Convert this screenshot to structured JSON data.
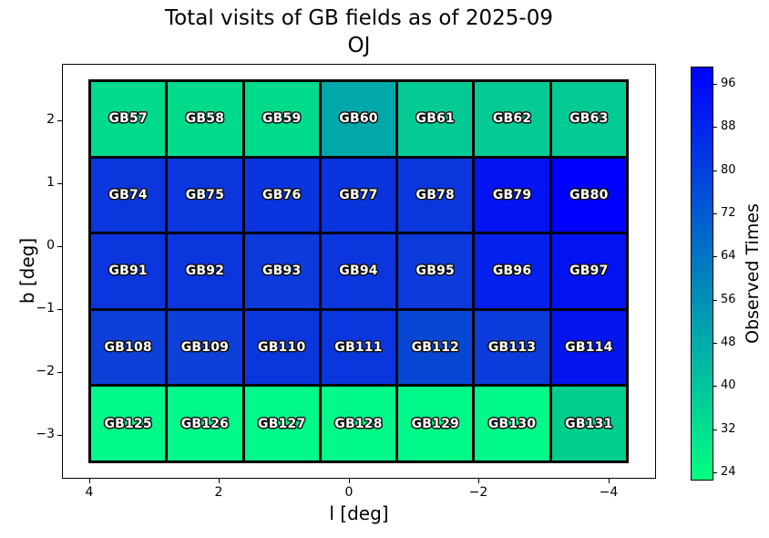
{
  "background": "#FFFFFF",
  "chart_data": {
    "type": "heatmap",
    "title": "Total visits of GB fields as of 2025-09",
    "subtitle": "OJ",
    "xlabel": "l [deg]",
    "ylabel": "b [deg]",
    "x_axis_inverted": true,
    "xlim_est": [
      4.5,
      -4.7
    ],
    "ylim_est": [
      -3.7,
      2.9
    ],
    "x_tick_labels": [
      "4",
      "2",
      "0",
      "−2",
      "−4"
    ],
    "y_tick_labels": [
      "2",
      "1",
      "0",
      "−1",
      "−2",
      "−3"
    ],
    "x_centers_est": [
      3.4,
      2.2,
      1.0,
      -0.2,
      -1.3,
      -2.5,
      -3.7
    ],
    "y_centers_est": [
      2.0,
      0.8,
      -0.4,
      -1.6,
      -2.8
    ],
    "grid_shape": {
      "cols": 7,
      "rows": 5
    },
    "rows": [
      {
        "fields": [
          {
            "label": "GB57",
            "color": "#00DA8C",
            "observed_times_est": 33
          },
          {
            "label": "GB58",
            "color": "#00DB8B",
            "observed_times_est": 33
          },
          {
            "label": "GB59",
            "color": "#00DB8B",
            "observed_times_est": 33
          },
          {
            "label": "GB60",
            "color": "#00A8AA",
            "observed_times_est": 49
          },
          {
            "label": "GB61",
            "color": "#04CB93",
            "observed_times_est": 38
          },
          {
            "label": "GB62",
            "color": "#04CB93",
            "observed_times_est": 38
          },
          {
            "label": "GB63",
            "color": "#04CB93",
            "observed_times_est": 38
          }
        ]
      },
      {
        "fields": [
          {
            "label": "GB74",
            "color": "#0B36DD",
            "observed_times_est": 82
          },
          {
            "label": "GB75",
            "color": "#0B36DD",
            "observed_times_est": 82
          },
          {
            "label": "GB76",
            "color": "#0A34DE",
            "observed_times_est": 83
          },
          {
            "label": "GB77",
            "color": "#0A34DE",
            "observed_times_est": 83
          },
          {
            "label": "GB78",
            "color": "#0B36DD",
            "observed_times_est": 82
          },
          {
            "label": "GB79",
            "color": "#0313F2",
            "observed_times_est": 93
          },
          {
            "label": "GB80",
            "color": "#0000FF",
            "observed_times_est": 99
          }
        ]
      },
      {
        "fields": [
          {
            "label": "GB91",
            "color": "#0B36DD",
            "observed_times_est": 82
          },
          {
            "label": "GB92",
            "color": "#0B36DD",
            "observed_times_est": 82
          },
          {
            "label": "GB93",
            "color": "#0D3ADB",
            "observed_times_est": 81
          },
          {
            "label": "GB94",
            "color": "#0B36DD",
            "observed_times_est": 82
          },
          {
            "label": "GB95",
            "color": "#0D3ADB",
            "observed_times_est": 81
          },
          {
            "label": "GB96",
            "color": "#0520EC",
            "observed_times_est": 90
          },
          {
            "label": "GB97",
            "color": "#0313F2",
            "observed_times_est": 93
          }
        ]
      },
      {
        "fields": [
          {
            "label": "GB108",
            "color": "#0C40D8",
            "observed_times_est": 80
          },
          {
            "label": "GB109",
            "color": "#0C40D8",
            "observed_times_est": 80
          },
          {
            "label": "GB110",
            "color": "#0A37DD",
            "observed_times_est": 82
          },
          {
            "label": "GB111",
            "color": "#0A37DD",
            "observed_times_est": 82
          },
          {
            "label": "GB112",
            "color": "#0847D4",
            "observed_times_est": 78
          },
          {
            "label": "GB113",
            "color": "#0B3BDA",
            "observed_times_est": 81
          },
          {
            "label": "GB114",
            "color": "#0415F0",
            "observed_times_est": 92
          }
        ]
      },
      {
        "fields": [
          {
            "label": "GB125",
            "color": "#00F988",
            "observed_times_est": 24
          },
          {
            "label": "GB126",
            "color": "#00F988",
            "observed_times_est": 24
          },
          {
            "label": "GB127",
            "color": "#00F988",
            "observed_times_est": 24
          },
          {
            "label": "GB128",
            "color": "#00F988",
            "observed_times_est": 24
          },
          {
            "label": "GB129",
            "color": "#00F889",
            "observed_times_est": 24
          },
          {
            "label": "GB130",
            "color": "#00F988",
            "observed_times_est": 24
          },
          {
            "label": "GB131",
            "color": "#00CE8E",
            "observed_times_est": 37
          }
        ]
      }
    ],
    "colorbar": {
      "label": "Observed Times",
      "ticks": [
        96,
        88,
        80,
        72,
        64,
        56,
        48,
        40,
        32,
        24
      ],
      "vmin_est": 22.5,
      "vmax_est": 99.2,
      "colormap": "winter_r (green to blue)",
      "gradient_stops": [
        "#00FF80",
        "#0080BF",
        "#0000FF"
      ]
    },
    "legend": "none",
    "gridlines": "off"
  }
}
